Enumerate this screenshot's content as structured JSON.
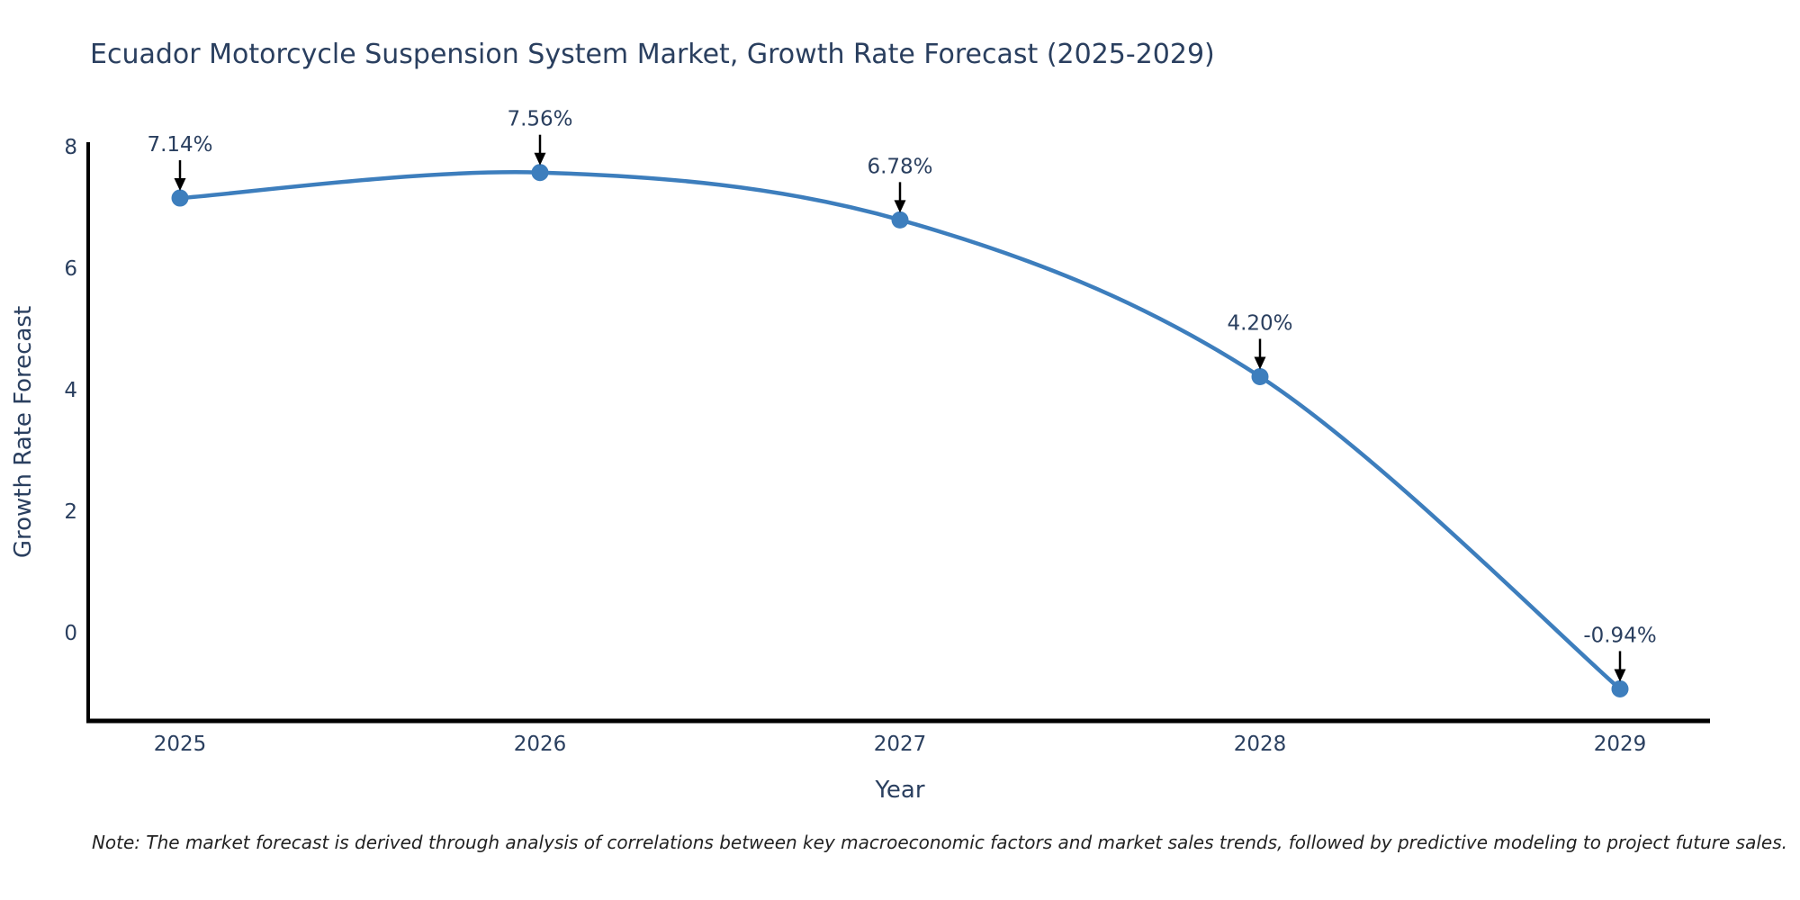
{
  "title": "Ecuador Motorcycle Suspension System Market, Growth Rate Forecast (2025-2029)",
  "note": "Note: The market forecast is derived through analysis of correlations between key macroeconomic factors and market sales trends, followed by predictive modeling to project future sales.",
  "chart_data": {
    "type": "line",
    "title": "Ecuador Motorcycle Suspension System Market, Growth Rate Forecast (2025-2029)",
    "xlabel": "Year",
    "ylabel": "Growth Rate Forecast",
    "x": [
      2025,
      2026,
      2027,
      2028,
      2029
    ],
    "values": [
      7.14,
      7.56,
      6.78,
      4.2,
      -0.94
    ],
    "point_labels": [
      "7.14%",
      "7.56%",
      "6.78%",
      "4.20%",
      "-0.94%"
    ],
    "xticks": [
      "2025",
      "2026",
      "2027",
      "2028",
      "2029"
    ],
    "yticks": [
      8,
      6,
      4,
      2,
      0
    ],
    "ylim": [
      -1.5,
      8.1
    ],
    "grid": false,
    "legend": null,
    "marker": "circle",
    "annotation_style": "value labels above points with downward black arrows",
    "colors": {
      "line": "#3d7ebd",
      "marker": "#3d7ebd",
      "axis": "#000000",
      "text": "#2a3f5f",
      "arrow": "#000000"
    }
  }
}
